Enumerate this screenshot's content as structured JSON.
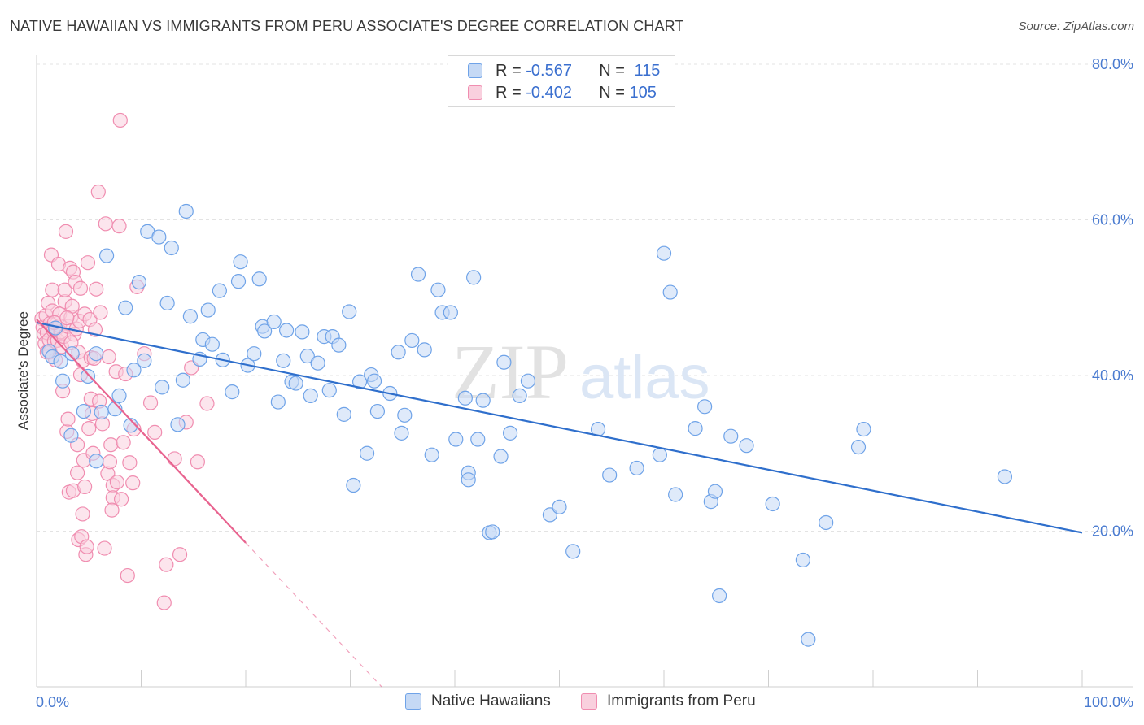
{
  "header": {
    "title": "NATIVE HAWAIIAN VS IMMIGRANTS FROM PERU ASSOCIATE'S DEGREE CORRELATION CHART",
    "source": "Source: ZipAtlas.com"
  },
  "watermark": {
    "zip": "ZIP",
    "atlas": "atlas"
  },
  "legend": {
    "rows": [
      {
        "r_label": "R =",
        "r_value": "-0.567",
        "n_label": "N =",
        "n_value": "115"
      },
      {
        "r_label": "R =",
        "r_value": "-0.402",
        "n_label": "N =",
        "n_value": "105"
      }
    ]
  },
  "chart_data": {
    "type": "scatter",
    "title": "NATIVE HAWAIIAN VS IMMIGRANTS FROM PERU ASSOCIATE'S DEGREE CORRELATION CHART",
    "ylabel": "Associate's Degree",
    "xlabel": "",
    "xlim": [
      0,
      100
    ],
    "ylim": [
      0,
      80
    ],
    "x_tick_labels": [
      "0.0%",
      "100.0%"
    ],
    "y_tick_labels": [
      "20.0%",
      "40.0%",
      "60.0%",
      "80.0%"
    ],
    "y_ticks": [
      20,
      40,
      60,
      80
    ],
    "grid": true,
    "legend_position": "bottom",
    "series": [
      {
        "name": "Native Hawaiians",
        "color": "#6fa3e8",
        "fill": "#c5d9f5",
        "trend": {
          "x1": 0,
          "y1": 46.8,
          "x2": 100,
          "y2": 19.8,
          "color": "#2f6fcc"
        },
        "points": [
          [
            1.2,
            43.1
          ],
          [
            1.5,
            42.4
          ],
          [
            1.8,
            46.1
          ],
          [
            2.3,
            41.8
          ],
          [
            2.5,
            39.3
          ],
          [
            3.4,
            42.8
          ],
          [
            3.3,
            32.3
          ],
          [
            4.5,
            35.4
          ],
          [
            4.9,
            39.9
          ],
          [
            5.7,
            29.0
          ],
          [
            5.7,
            42.8
          ],
          [
            6.2,
            35.3
          ],
          [
            6.7,
            55.4
          ],
          [
            7.5,
            35.7
          ],
          [
            7.9,
            37.4
          ],
          [
            8.5,
            48.7
          ],
          [
            9.0,
            33.6
          ],
          [
            9.3,
            40.7
          ],
          [
            9.8,
            52.0
          ],
          [
            10.3,
            41.9
          ],
          [
            10.6,
            58.5
          ],
          [
            11.7,
            57.8
          ],
          [
            12.0,
            38.5
          ],
          [
            12.5,
            49.3
          ],
          [
            12.9,
            56.4
          ],
          [
            13.5,
            33.7
          ],
          [
            14.0,
            39.4
          ],
          [
            14.3,
            61.1
          ],
          [
            14.7,
            47.6
          ],
          [
            15.6,
            42.1
          ],
          [
            15.9,
            44.6
          ],
          [
            16.4,
            48.4
          ],
          [
            16.8,
            44.0
          ],
          [
            17.5,
            50.9
          ],
          [
            17.8,
            42.0
          ],
          [
            18.7,
            37.9
          ],
          [
            19.3,
            52.1
          ],
          [
            19.5,
            54.6
          ],
          [
            20.2,
            41.3
          ],
          [
            20.8,
            42.8
          ],
          [
            21.3,
            52.4
          ],
          [
            21.6,
            46.3
          ],
          [
            21.8,
            45.7
          ],
          [
            22.7,
            46.9
          ],
          [
            23.1,
            36.6
          ],
          [
            23.6,
            41.9
          ],
          [
            23.9,
            45.8
          ],
          [
            24.4,
            39.2
          ],
          [
            24.8,
            39.0
          ],
          [
            25.4,
            45.6
          ],
          [
            25.9,
            42.5
          ],
          [
            26.2,
            37.4
          ],
          [
            26.9,
            41.6
          ],
          [
            27.5,
            45.0
          ],
          [
            28.0,
            38.1
          ],
          [
            28.3,
            45.0
          ],
          [
            28.9,
            43.9
          ],
          [
            29.4,
            35.0
          ],
          [
            29.9,
            48.2
          ],
          [
            30.3,
            25.9
          ],
          [
            30.9,
            39.2
          ],
          [
            31.6,
            30.0
          ],
          [
            32.0,
            40.1
          ],
          [
            32.3,
            39.3
          ],
          [
            32.6,
            35.4
          ],
          [
            33.8,
            37.7
          ],
          [
            34.6,
            43.0
          ],
          [
            34.9,
            32.6
          ],
          [
            35.2,
            34.9
          ],
          [
            35.9,
            44.5
          ],
          [
            36.5,
            53.0
          ],
          [
            37.1,
            43.3
          ],
          [
            37.8,
            29.8
          ],
          [
            38.4,
            51.0
          ],
          [
            38.8,
            48.1
          ],
          [
            39.6,
            48.1
          ],
          [
            40.1,
            31.8
          ],
          [
            41.0,
            37.1
          ],
          [
            41.3,
            27.5
          ],
          [
            41.3,
            26.6
          ],
          [
            41.8,
            52.6
          ],
          [
            42.2,
            31.8
          ],
          [
            42.7,
            36.8
          ],
          [
            43.3,
            19.8
          ],
          [
            43.6,
            19.9
          ],
          [
            44.4,
            29.6
          ],
          [
            44.7,
            41.7
          ],
          [
            45.3,
            32.6
          ],
          [
            46.2,
            37.4
          ],
          [
            47.0,
            39.3
          ],
          [
            49.1,
            22.1
          ],
          [
            50.0,
            23.1
          ],
          [
            51.3,
            17.4
          ],
          [
            53.7,
            33.1
          ],
          [
            54.8,
            27.2
          ],
          [
            57.4,
            28.1
          ],
          [
            59.6,
            29.8
          ],
          [
            60.0,
            55.7
          ],
          [
            60.6,
            50.7
          ],
          [
            61.1,
            24.7
          ],
          [
            63.0,
            33.2
          ],
          [
            63.9,
            36.0
          ],
          [
            64.5,
            23.8
          ],
          [
            64.9,
            25.1
          ],
          [
            65.3,
            11.7
          ],
          [
            66.4,
            32.2
          ],
          [
            67.9,
            31.0
          ],
          [
            70.4,
            23.5
          ],
          [
            73.3,
            16.3
          ],
          [
            73.8,
            6.1
          ],
          [
            75.5,
            21.1
          ],
          [
            78.6,
            30.8
          ],
          [
            79.1,
            33.1
          ],
          [
            92.6,
            27.0
          ]
        ]
      },
      {
        "name": "Immigrants from Peru",
        "color": "#f08db0",
        "fill": "#f9d0de",
        "trend": {
          "x1": 0,
          "y1": 47.2,
          "x2": 20.0,
          "y2": 18.5,
          "color": "#e8638f"
        },
        "trend_dashed": {
          "x1": 20.0,
          "y1": 18.5,
          "x2": 33.0,
          "y2": 0.0
        },
        "points": [
          [
            0.5,
            47.3
          ],
          [
            0.6,
            46.2
          ],
          [
            0.7,
            45.3
          ],
          [
            0.8,
            44.1
          ],
          [
            0.9,
            47.7
          ],
          [
            1.0,
            45.5
          ],
          [
            1.1,
            49.3
          ],
          [
            1.2,
            44.6
          ],
          [
            1.3,
            43.0
          ],
          [
            1.3,
            46.7
          ],
          [
            1.4,
            55.5
          ],
          [
            1.5,
            48.3
          ],
          [
            1.5,
            51.0
          ],
          [
            1.6,
            45.8
          ],
          [
            1.7,
            44.4
          ],
          [
            1.8,
            42.0
          ],
          [
            1.9,
            46.0
          ],
          [
            2.0,
            44.5
          ],
          [
            2.1,
            54.3
          ],
          [
            2.2,
            47.9
          ],
          [
            2.2,
            46.4
          ],
          [
            2.3,
            45.6
          ],
          [
            2.4,
            43.7
          ],
          [
            2.5,
            38.0
          ],
          [
            2.6,
            45.0
          ],
          [
            2.7,
            49.5
          ],
          [
            2.7,
            51.0
          ],
          [
            2.8,
            58.5
          ],
          [
            2.9,
            32.8
          ],
          [
            3.0,
            46.3
          ],
          [
            3.0,
            34.4
          ],
          [
            3.1,
            25.0
          ],
          [
            3.2,
            53.8
          ],
          [
            3.3,
            47.5
          ],
          [
            3.4,
            48.9
          ],
          [
            3.5,
            53.3
          ],
          [
            3.5,
            25.2
          ],
          [
            3.6,
            45.3
          ],
          [
            3.7,
            52.0
          ],
          [
            3.8,
            46.0
          ],
          [
            3.9,
            27.5
          ],
          [
            3.9,
            31.1
          ],
          [
            4.0,
            43.0
          ],
          [
            4.0,
            18.9
          ],
          [
            4.1,
            47.0
          ],
          [
            4.2,
            51.2
          ],
          [
            4.3,
            19.3
          ],
          [
            4.4,
            41.9
          ],
          [
            4.4,
            22.2
          ],
          [
            4.5,
            29.1
          ],
          [
            4.6,
            47.9
          ],
          [
            4.6,
            25.7
          ],
          [
            4.7,
            17.0
          ],
          [
            4.8,
            18.0
          ],
          [
            4.9,
            54.5
          ],
          [
            5.0,
            33.2
          ],
          [
            5.1,
            47.2
          ],
          [
            5.2,
            42.3
          ],
          [
            5.3,
            35.1
          ],
          [
            5.4,
            30.0
          ],
          [
            5.5,
            42.2
          ],
          [
            5.6,
            45.9
          ],
          [
            5.7,
            51.1
          ],
          [
            5.9,
            63.6
          ],
          [
            6.1,
            48.1
          ],
          [
            6.3,
            33.8
          ],
          [
            6.5,
            17.8
          ],
          [
            6.6,
            59.5
          ],
          [
            6.8,
            27.4
          ],
          [
            6.9,
            42.4
          ],
          [
            7.0,
            28.9
          ],
          [
            7.1,
            31.1
          ],
          [
            7.3,
            25.9
          ],
          [
            7.3,
            24.3
          ],
          [
            7.6,
            40.5
          ],
          [
            7.7,
            26.3
          ],
          [
            7.9,
            59.2
          ],
          [
            8.0,
            72.8
          ],
          [
            8.3,
            31.4
          ],
          [
            8.5,
            40.2
          ],
          [
            8.7,
            14.3
          ],
          [
            8.9,
            28.8
          ],
          [
            9.2,
            26.2
          ],
          [
            9.6,
            51.4
          ],
          [
            10.3,
            42.8
          ],
          [
            10.9,
            36.5
          ],
          [
            11.3,
            32.7
          ],
          [
            12.2,
            10.8
          ],
          [
            12.4,
            15.7
          ],
          [
            13.2,
            29.3
          ],
          [
            13.7,
            17.0
          ],
          [
            14.3,
            34.0
          ],
          [
            14.8,
            41.0
          ],
          [
            1.0,
            43.0
          ],
          [
            1.7,
            46.8
          ],
          [
            2.9,
            47.4
          ],
          [
            3.3,
            44.2
          ],
          [
            4.2,
            40.1
          ],
          [
            5.2,
            37.0
          ],
          [
            6.0,
            36.7
          ],
          [
            7.2,
            22.7
          ],
          [
            8.1,
            24.1
          ],
          [
            9.3,
            33.1
          ],
          [
            15.4,
            28.9
          ],
          [
            16.3,
            36.4
          ]
        ]
      }
    ]
  },
  "bottom_legend": {
    "items": [
      {
        "label": "Native Hawaiians"
      },
      {
        "label": "Immigrants from Peru"
      }
    ]
  },
  "colors": {
    "blue_dot": "#6fa3e8",
    "blue_fill": "#c5d9f5",
    "blue_line": "#2f6fcc",
    "pink_dot": "#f08db0",
    "pink_fill": "#f9d0de",
    "pink_line": "#e8638f",
    "tick_label": "#4a7bd0"
  }
}
